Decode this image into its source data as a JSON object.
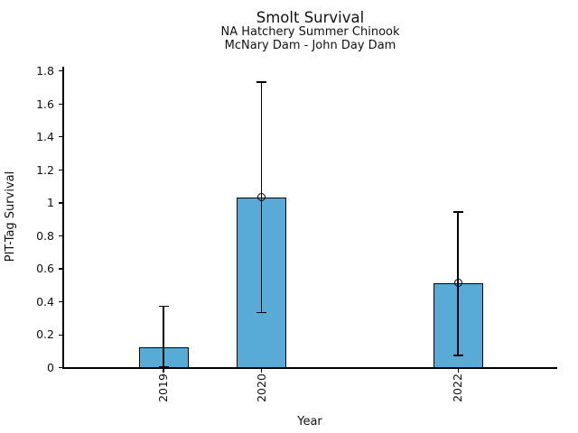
{
  "chart_data": {
    "type": "bar",
    "title": "Smolt Survival",
    "subtitle_line1": "NA Hatchery Summer Chinook",
    "subtitle_line2": "McNary Dam - John Day Dam",
    "xlabel": "Year",
    "ylabel": "PIT-Tag Survival",
    "categories": [
      "2019",
      "2020",
      "2022"
    ],
    "x_numeric": [
      2019,
      2020,
      2022
    ],
    "values": [
      0.12,
      1.03,
      0.51
    ],
    "error_low": [
      0.0,
      0.33,
      0.07
    ],
    "error_high": [
      0.37,
      1.73,
      0.94
    ],
    "point_markers": [
      false,
      true,
      true
    ],
    "marker_style": "open-circle",
    "ylim": [
      0,
      1.8
    ],
    "ytick_values": [
      0,
      0.2,
      0.4,
      0.6,
      0.8,
      1,
      1.2,
      1.4,
      1.6,
      1.8
    ],
    "ytick_labels": [
      "0",
      "0.2",
      "0.4",
      "0.6",
      "0.8",
      "1",
      "1.2",
      "1.4",
      "1.6",
      "1.8"
    ],
    "grid": false,
    "legend": "none",
    "colors": {
      "bar_fill": "#58ABD7",
      "bar_edge": "#000000",
      "error_bar": "#000000",
      "axis": "#000000",
      "text": "#111111",
      "background": "#ffffff"
    }
  }
}
